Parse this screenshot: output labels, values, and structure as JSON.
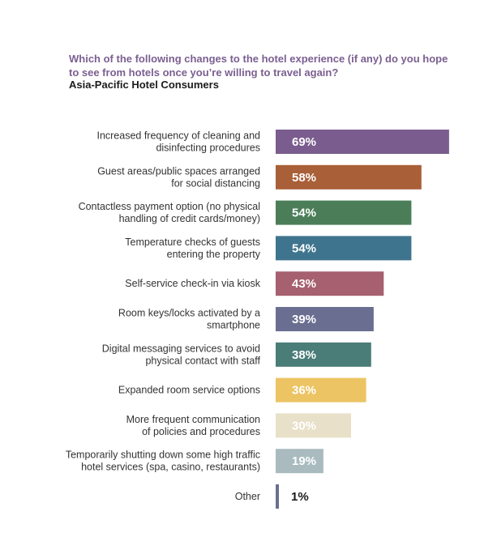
{
  "title": "Which of the following changes to the hotel experience (if any) do you hope to see from hotels once you’re willing to travel again?",
  "subtitle": "Asia-Pacific Hotel Consumers",
  "chart_data": {
    "type": "bar",
    "orientation": "horizontal",
    "title": "Which of the following changes to the hotel experience (if any) do you hope to see from hotels once you’re willing to travel again?",
    "subtitle": "Asia-Pacific Hotel Consumers",
    "unit": "%",
    "xlim": [
      0,
      100
    ],
    "grid": false,
    "legend": "none",
    "categories": [
      [
        "Increased frequency of cleaning and",
        "disinfecting procedures"
      ],
      [
        "Guest areas/public spaces arranged",
        "for social distancing"
      ],
      [
        "Contactless payment option (no physical",
        "handling of credit cards/money)"
      ],
      [
        "Temperature checks of guests",
        "entering the property"
      ],
      [
        "Self-service check-in via kiosk"
      ],
      [
        "Room keys/locks activated by a",
        "smartphone"
      ],
      [
        "Digital messaging services to avoid",
        "physical contact with staff"
      ],
      [
        "Expanded room service options"
      ],
      [
        "More frequent communication",
        "of policies and procedures"
      ],
      [
        "Temporarily shutting down some high traffic",
        "hotel services (spa, casino, restaurants)"
      ],
      [
        "Other"
      ]
    ],
    "values": [
      69,
      58,
      54,
      54,
      43,
      39,
      38,
      36,
      30,
      19,
      1
    ],
    "value_labels": [
      "69%",
      "58%",
      "54%",
      "54%",
      "43%",
      "39%",
      "38%",
      "36%",
      "30%",
      "19%",
      "1%"
    ],
    "colors": [
      "#7a5d8e",
      "#a95f37",
      "#4b7e58",
      "#3f748e",
      "#a6606f",
      "#6a6f91",
      "#4a7c78",
      "#ecc463",
      "#e9e0c9",
      "#a9bbbf",
      "#6a6f91"
    ],
    "value_label_colors": [
      "#ffffff",
      "#ffffff",
      "#ffffff",
      "#ffffff",
      "#ffffff",
      "#ffffff",
      "#ffffff",
      "#ffffff",
      "#ffffff",
      "#ffffff",
      "#1b1b1b"
    ]
  }
}
